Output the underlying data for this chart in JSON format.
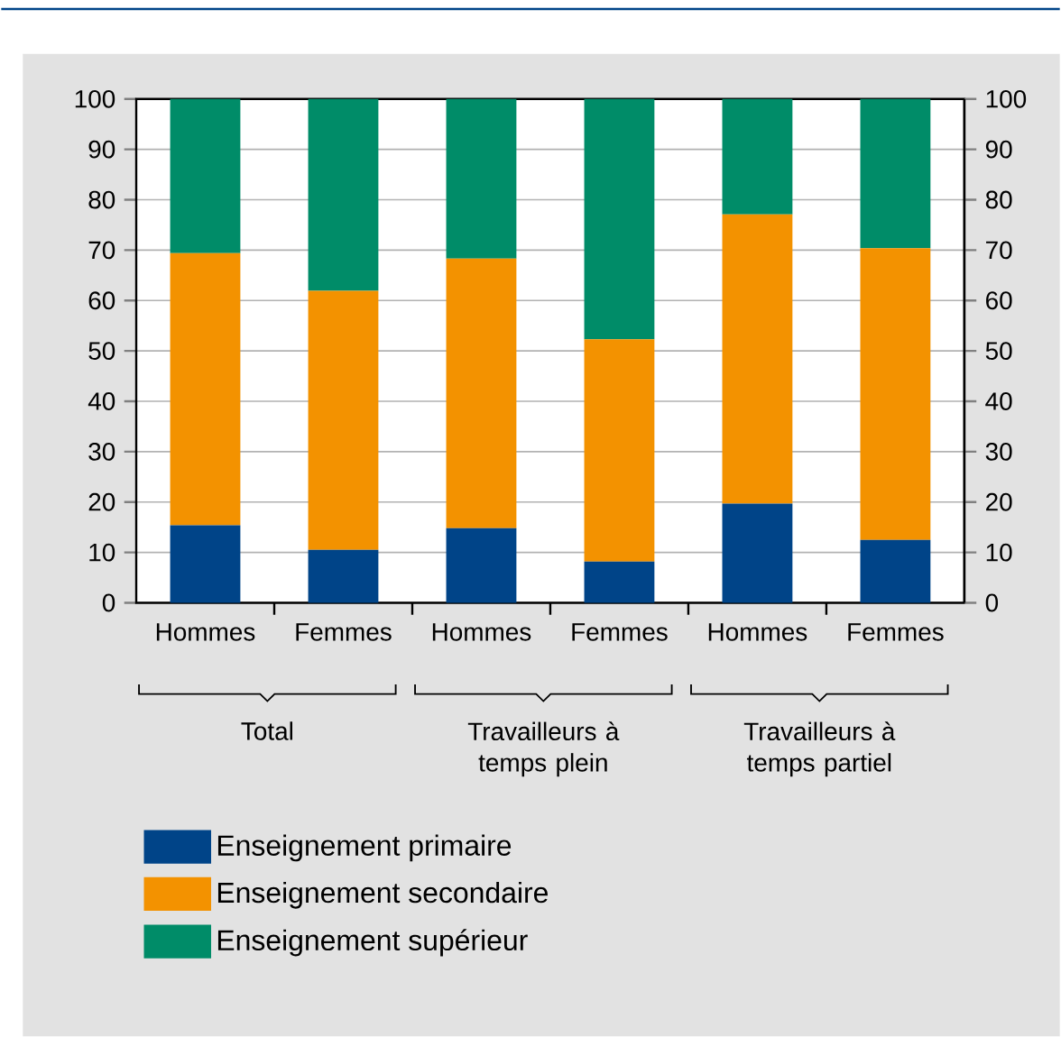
{
  "chart_data": {
    "type": "bar",
    "stacked": true,
    "categories": [
      "Hommes",
      "Femmes",
      "Hommes",
      "Femmes",
      "Hommes",
      "Femmes"
    ],
    "series": [
      {
        "name": "Enseignement primaire",
        "color": "#004488",
        "values": [
          15.4,
          10.5,
          14.8,
          8.2,
          19.7,
          12.5
        ]
      },
      {
        "name": "Enseignement secondaire",
        "color": "#f39200",
        "values": [
          54.0,
          51.4,
          53.5,
          44.1,
          57.4,
          57.9
        ]
      },
      {
        "name": "Enseignement supérieur",
        "color": "#008c68",
        "values": [
          30.6,
          38.1,
          31.7,
          47.7,
          22.9,
          29.6
        ]
      }
    ],
    "ylim": [
      0,
      100
    ],
    "yticks": [
      0,
      10,
      20,
      30,
      40,
      50,
      60,
      70,
      80,
      90,
      100
    ],
    "y2lim": [
      0,
      100
    ],
    "y2ticks": [
      0,
      10,
      20,
      30,
      40,
      50,
      60,
      70,
      80,
      90,
      100
    ],
    "annotations": [
      "Total",
      "Travailleurs à temps plein",
      "Travailleurs à temps partiel"
    ],
    "grid": "y",
    "legend": "bottom"
  }
}
